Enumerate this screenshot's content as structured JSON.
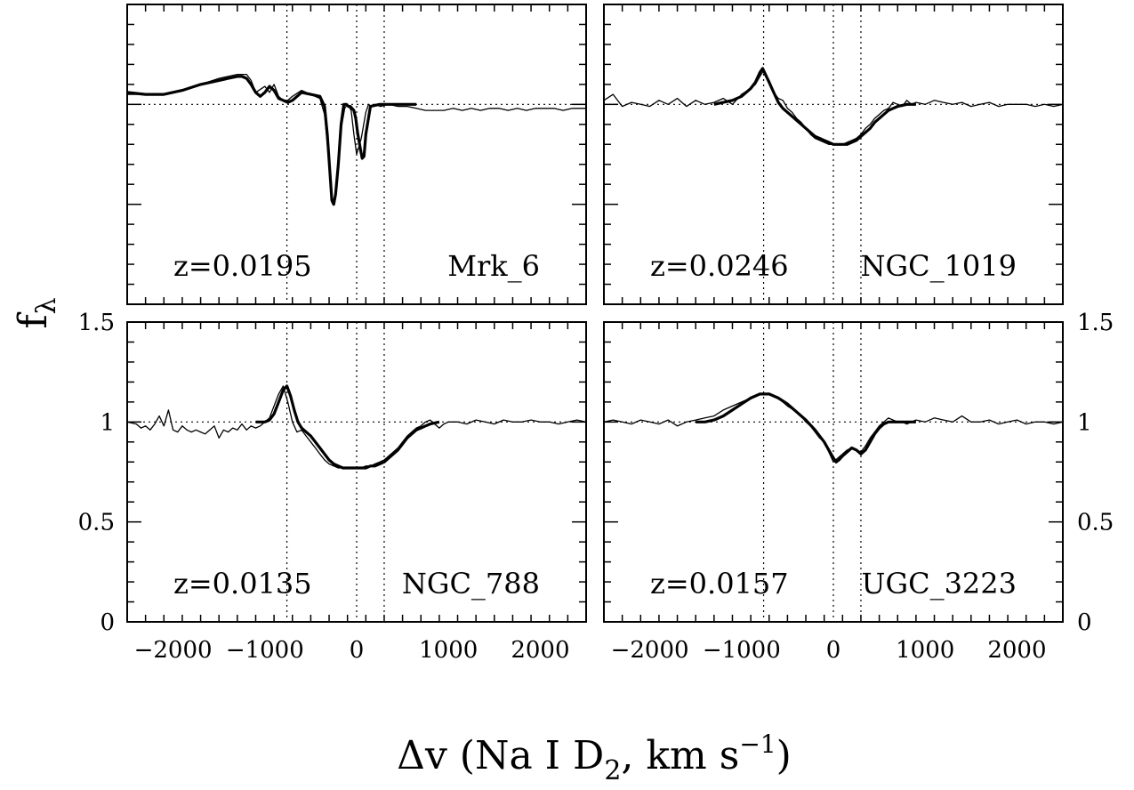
{
  "figure": {
    "ylabel_main": "f",
    "ylabel_sub": "λ",
    "xlabel_prefix": "Δv (Na I D",
    "xlabel_sub": "2",
    "xlabel_mid": ", km s",
    "xlabel_sup": "−1",
    "xlabel_suffix": ")"
  },
  "chart_data": [
    {
      "type": "line",
      "panel": "top-left",
      "title": "Mrk_6",
      "redshift_label": "z=0.0195",
      "xlim": [
        -2500,
        2500
      ],
      "ylim": [
        0,
        1.5
      ],
      "x_tick_labels": [],
      "y_tick_labels": [],
      "reference_lines": {
        "x": [
          -760,
          0,
          300
        ],
        "y": [
          1
        ]
      },
      "series": [
        {
          "style": "thin",
          "x": [
            -2500,
            -2300,
            -2100,
            -1900,
            -1700,
            -1500,
            -1400,
            -1300,
            -1200,
            -1150,
            -1100,
            -1000,
            -950,
            -900,
            -850,
            -800,
            -750,
            -700,
            -600,
            -500,
            -400,
            -350,
            -300,
            -270,
            -250,
            -220,
            -180,
            -130,
            -100,
            -60,
            -30,
            0,
            50,
            100,
            130,
            160,
            200,
            260,
            350,
            450,
            550,
            650,
            750,
            850,
            950,
            1050,
            1150,
            1250,
            1350,
            1450,
            1550,
            1650,
            1750,
            1850,
            1950,
            2050,
            2150,
            2250,
            2350,
            2500
          ],
          "y": [
            1.05,
            1.05,
            1.05,
            1.07,
            1.1,
            1.13,
            1.14,
            1.15,
            1.15,
            1.12,
            1.06,
            1.09,
            1.06,
            1.1,
            1.04,
            1.02,
            1.02,
            1.04,
            1.07,
            1.05,
            1.03,
            0.95,
            0.7,
            0.53,
            0.51,
            0.58,
            0.85,
            0.98,
            1.0,
            0.97,
            0.85,
            0.75,
            0.83,
            0.96,
            1.0,
            0.99,
            1.0,
            0.99,
            1.0,
            0.99,
            0.99,
            0.98,
            0.97,
            0.97,
            0.97,
            0.98,
            0.97,
            0.98,
            0.97,
            0.98,
            0.98,
            0.97,
            0.98,
            0.97,
            0.98,
            0.98,
            0.98,
            0.97,
            0.98,
            0.98
          ]
        },
        {
          "style": "thick",
          "x": [
            -2500,
            -2300,
            -2100,
            -1900,
            -1700,
            -1500,
            -1400,
            -1300,
            -1250,
            -1200,
            -1150,
            -1100,
            -1050,
            -1000,
            -950,
            -900,
            -850,
            -800,
            -750,
            -700,
            -600,
            -500,
            -400,
            -350,
            -320,
            -290,
            -270,
            -250,
            -230,
            -200,
            -170,
            -140,
            -110,
            -90,
            -70,
            -50,
            -30,
            -10,
            10,
            40,
            60,
            80,
            100,
            150,
            250,
            400,
            500,
            600,
            650
          ],
          "y": [
            1.06,
            1.05,
            1.05,
            1.07,
            1.1,
            1.12,
            1.13,
            1.14,
            1.14,
            1.13,
            1.1,
            1.06,
            1.04,
            1.06,
            1.09,
            1.07,
            1.03,
            1.02,
            1.01,
            1.02,
            1.06,
            1.05,
            1.04,
            0.99,
            0.85,
            0.65,
            0.52,
            0.5,
            0.55,
            0.7,
            0.9,
            1.0,
            1.0,
            0.99,
            0.99,
            0.98,
            0.97,
            0.93,
            0.86,
            0.78,
            0.73,
            0.74,
            0.85,
            0.99,
            1.0,
            1.0,
            1.0,
            1.0,
            1.0
          ]
        }
      ]
    },
    {
      "type": "line",
      "panel": "top-right",
      "title": "NGC_1019",
      "redshift_label": "z=0.0246",
      "xlim": [
        -2500,
        2500
      ],
      "ylim": [
        0,
        1.5
      ],
      "x_tick_labels": [],
      "y_tick_labels": [],
      "reference_lines": {
        "x": [
          -760,
          0,
          300
        ],
        "y": [
          1
        ]
      },
      "series": [
        {
          "style": "thin",
          "x": [
            -2500,
            -2400,
            -2300,
            -2200,
            -2100,
            -2000,
            -1900,
            -1800,
            -1700,
            -1600,
            -1500,
            -1400,
            -1300,
            -1200,
            -1100,
            -1000,
            -900,
            -850,
            -800,
            -760,
            -700,
            -650,
            -600,
            -550,
            -500,
            -450,
            -400,
            -350,
            -300,
            -250,
            -200,
            -150,
            -100,
            -50,
            0,
            50,
            100,
            150,
            200,
            250,
            300,
            350,
            400,
            450,
            500,
            550,
            600,
            650,
            700,
            750,
            800,
            850,
            900,
            1000,
            1100,
            1200,
            1300,
            1400,
            1500,
            1600,
            1700,
            1800,
            1900,
            2000,
            2100,
            2200,
            2300,
            2400,
            2500
          ],
          "y": [
            1.02,
            1.05,
            0.99,
            1.01,
            1.0,
            0.99,
            1.02,
            1.0,
            1.03,
            0.99,
            1.02,
            1.0,
            1.01,
            1.03,
            1.0,
            1.05,
            1.08,
            1.1,
            1.14,
            1.17,
            1.12,
            1.06,
            1.03,
            1.02,
            0.98,
            0.96,
            0.93,
            0.91,
            0.88,
            0.85,
            0.83,
            0.82,
            0.81,
            0.8,
            0.8,
            0.8,
            0.8,
            0.81,
            0.82,
            0.83,
            0.85,
            0.88,
            0.9,
            0.93,
            0.95,
            0.97,
            0.98,
            1.01,
            1.0,
            0.99,
            1.02,
            1.0,
            1.01,
            1.0,
            1.02,
            1.01,
            1.0,
            1.01,
            0.99,
            1.0,
            1.01,
            0.99,
            1.0,
            1.0,
            1.0,
            0.99,
            1.0,
            0.99,
            1.0
          ]
        },
        {
          "style": "thick",
          "x": [
            -1300,
            -1200,
            -1100,
            -1000,
            -900,
            -850,
            -800,
            -770,
            -750,
            -700,
            -650,
            -600,
            -550,
            -500,
            -450,
            -400,
            -350,
            -300,
            -250,
            -200,
            -150,
            -100,
            -50,
            0,
            50,
            100,
            150,
            200,
            250,
            300,
            350,
            400,
            450,
            500,
            550,
            600,
            650,
            700,
            800,
            900
          ],
          "y": [
            1.0,
            1.01,
            1.02,
            1.04,
            1.08,
            1.11,
            1.16,
            1.18,
            1.16,
            1.11,
            1.06,
            1.01,
            0.98,
            0.96,
            0.94,
            0.92,
            0.9,
            0.88,
            0.86,
            0.84,
            0.83,
            0.82,
            0.81,
            0.8,
            0.8,
            0.8,
            0.8,
            0.81,
            0.82,
            0.84,
            0.86,
            0.88,
            0.91,
            0.93,
            0.95,
            0.97,
            0.98,
            0.99,
            1.0,
            1.0
          ]
        }
      ]
    },
    {
      "type": "line",
      "panel": "bottom-left",
      "title": "NGC_788",
      "redshift_label": "z=0.0135",
      "xlim": [
        -2500,
        2500
      ],
      "ylim": [
        0,
        1.5
      ],
      "x_tick_labels": [
        "−2000",
        "−1000",
        "0",
        "1000",
        "2000"
      ],
      "x_tick_values": [
        -2000,
        -1000,
        0,
        1000,
        2000
      ],
      "y_tick_labels": [
        "0",
        "0.5",
        "1",
        "1.5"
      ],
      "y_tick_values": [
        0,
        0.5,
        1,
        1.5
      ],
      "reference_lines": {
        "x": [
          -760,
          0,
          300
        ],
        "y": [
          1
        ]
      },
      "series": [
        {
          "style": "thin",
          "x": [
            -2500,
            -2400,
            -2350,
            -2300,
            -2250,
            -2200,
            -2150,
            -2100,
            -2050,
            -2000,
            -1950,
            -1900,
            -1850,
            -1800,
            -1750,
            -1700,
            -1650,
            -1600,
            -1550,
            -1500,
            -1450,
            -1400,
            -1350,
            -1300,
            -1250,
            -1200,
            -1150,
            -1100,
            -1050,
            -1000,
            -950,
            -900,
            -850,
            -800,
            -750,
            -700,
            -650,
            -600,
            -550,
            -500,
            -450,
            -400,
            -350,
            -300,
            -250,
            -200,
            -150,
            -100,
            -50,
            0,
            50,
            100,
            150,
            200,
            250,
            300,
            350,
            400,
            450,
            500,
            550,
            600,
            650,
            700,
            750,
            800,
            850,
            900,
            950,
            1000,
            1100,
            1200,
            1300,
            1400,
            1500,
            1600,
            1700,
            1800,
            1900,
            2000,
            2100,
            2200,
            2300,
            2400,
            2500
          ],
          "y": [
            1.0,
            0.99,
            0.97,
            0.98,
            0.96,
            0.99,
            1.03,
            0.98,
            1.06,
            0.96,
            0.95,
            0.98,
            0.96,
            0.95,
            0.96,
            0.95,
            0.94,
            0.96,
            0.98,
            0.92,
            0.96,
            0.95,
            0.97,
            0.96,
            0.99,
            0.96,
            0.98,
            0.97,
            0.98,
            1.0,
            1.02,
            1.08,
            1.14,
            1.18,
            1.1,
            1.0,
            0.95,
            0.96,
            0.93,
            0.9,
            0.87,
            0.84,
            0.81,
            0.79,
            0.78,
            0.77,
            0.77,
            0.77,
            0.77,
            0.77,
            0.77,
            0.78,
            0.78,
            0.79,
            0.8,
            0.81,
            0.83,
            0.85,
            0.87,
            0.9,
            0.93,
            0.95,
            0.97,
            0.98,
            1.0,
            1.01,
            0.99,
            0.97,
            0.99,
            1.0,
            1.0,
            0.99,
            1.01,
            1.0,
            0.99,
            1.01,
            1.0,
            1.0,
            1.01,
            1.0,
            1.0,
            0.99,
            1.0,
            1.01,
            1.0
          ]
        },
        {
          "style": "thick",
          "x": [
            -1100,
            -1000,
            -950,
            -900,
            -850,
            -800,
            -760,
            -720,
            -680,
            -640,
            -600,
            -550,
            -500,
            -450,
            -400,
            -350,
            -300,
            -250,
            -200,
            -150,
            -100,
            -50,
            0,
            50,
            100,
            150,
            200,
            250,
            300,
            350,
            400,
            450,
            500,
            550,
            600,
            650,
            700,
            750,
            800,
            900
          ],
          "y": [
            1.0,
            1.0,
            1.01,
            1.04,
            1.1,
            1.16,
            1.18,
            1.13,
            1.06,
            1.0,
            0.97,
            0.95,
            0.93,
            0.9,
            0.87,
            0.84,
            0.81,
            0.79,
            0.78,
            0.77,
            0.77,
            0.77,
            0.77,
            0.77,
            0.77,
            0.78,
            0.78,
            0.79,
            0.8,
            0.82,
            0.84,
            0.86,
            0.89,
            0.92,
            0.94,
            0.96,
            0.97,
            0.98,
            0.99,
            1.0
          ]
        }
      ]
    },
    {
      "type": "line",
      "panel": "bottom-right",
      "title": "UGC_3223",
      "redshift_label": "z=0.0157",
      "xlim": [
        -2500,
        2500
      ],
      "ylim": [
        0,
        1.5
      ],
      "x_tick_labels": [
        "−2000",
        "−1000",
        "0",
        "1000",
        "2000"
      ],
      "x_tick_values": [
        -2000,
        -1000,
        0,
        1000,
        2000
      ],
      "y_tick_labels": [
        "0",
        "0.5",
        "1",
        "1.5"
      ],
      "y_tick_values": [
        0,
        0.5,
        1,
        1.5
      ],
      "reference_lines": {
        "x": [
          -760,
          0,
          300
        ],
        "y": [
          1
        ]
      },
      "series": [
        {
          "style": "thin",
          "x": [
            -2500,
            -2400,
            -2300,
            -2200,
            -2100,
            -2000,
            -1900,
            -1800,
            -1700,
            -1600,
            -1500,
            -1400,
            -1300,
            -1200,
            -1100,
            -1000,
            -900,
            -800,
            -700,
            -600,
            -500,
            -400,
            -350,
            -300,
            -250,
            -200,
            -150,
            -100,
            -50,
            0,
            50,
            100,
            150,
            200,
            250,
            300,
            350,
            400,
            450,
            500,
            550,
            600,
            650,
            700,
            750,
            800,
            850,
            900,
            1000,
            1100,
            1200,
            1300,
            1400,
            1500,
            1600,
            1700,
            1800,
            1900,
            2000,
            2100,
            2200,
            2300,
            2400,
            2500
          ],
          "y": [
            1.0,
            1.01,
            1.0,
            0.99,
            1.01,
            1.0,
            0.99,
            1.01,
            0.98,
            1.0,
            1.01,
            1.02,
            1.03,
            1.06,
            1.08,
            1.1,
            1.12,
            1.14,
            1.14,
            1.12,
            1.08,
            1.05,
            1.03,
            1.0,
            0.98,
            0.95,
            0.92,
            0.9,
            0.85,
            0.8,
            0.82,
            0.84,
            0.86,
            0.87,
            0.86,
            0.85,
            0.88,
            0.92,
            0.95,
            0.98,
            1.0,
            1.02,
            1.01,
            1.0,
            1.0,
            0.99,
            1.0,
            1.01,
            1.0,
            1.02,
            1.01,
            1.0,
            1.03,
            1.0,
            1.0,
            1.01,
            0.99,
            1.0,
            1.01,
            0.99,
            1.0,
            1.0,
            0.99,
            1.0
          ]
        },
        {
          "style": "thick",
          "x": [
            -1500,
            -1400,
            -1300,
            -1200,
            -1100,
            -1000,
            -900,
            -800,
            -760,
            -700,
            -600,
            -500,
            -400,
            -300,
            -200,
            -150,
            -100,
            -50,
            0,
            30,
            60,
            100,
            150,
            200,
            250,
            300,
            350,
            400,
            450,
            500,
            550,
            600,
            700,
            800,
            900
          ],
          "y": [
            1.0,
            1.0,
            1.01,
            1.03,
            1.06,
            1.09,
            1.12,
            1.14,
            1.14,
            1.14,
            1.12,
            1.09,
            1.05,
            1.01,
            0.96,
            0.93,
            0.9,
            0.86,
            0.82,
            0.8,
            0.81,
            0.83,
            0.85,
            0.87,
            0.86,
            0.84,
            0.86,
            0.9,
            0.94,
            0.97,
            0.99,
            1.0,
            1.0,
            1.0,
            1.0
          ]
        }
      ]
    }
  ]
}
